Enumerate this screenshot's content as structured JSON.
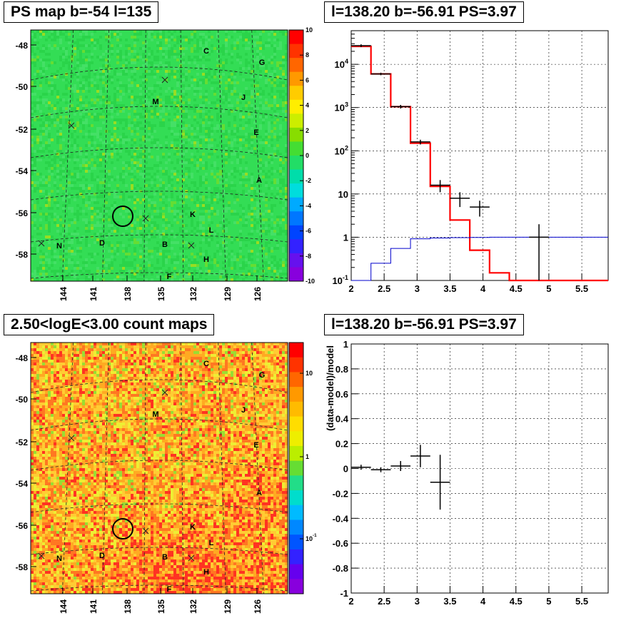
{
  "chart_data": [
    {
      "type": "heatmap",
      "title": "PS map b=-54 l=135",
      "ylabel": "",
      "xlabel": "",
      "y_ticks": [
        "-48",
        "-50",
        "-52",
        "-54",
        "-56",
        "-58"
      ],
      "x_ticks": [
        "144",
        "141",
        "138",
        "135",
        "132",
        "129",
        "126"
      ],
      "colorbar_ticks": [
        "10",
        "8",
        "6",
        "4",
        "2",
        "0",
        "-2",
        "-4",
        "-6",
        "-8",
        "-10"
      ],
      "colorbar_range": [
        -10,
        10
      ],
      "source_labels": [
        "C",
        "G",
        "M",
        "J",
        "E",
        "A",
        "K",
        "L",
        "N",
        "D",
        "B",
        "H",
        "F"
      ],
      "colors": {
        "background": "#33dd55",
        "noise": "#22cc44"
      }
    },
    {
      "type": "line",
      "title": "l=138.20 b=-56.91 PS=3.97",
      "xlabel": "",
      "ylabel": "",
      "log_y": true,
      "xlim": [
        2,
        5.9
      ],
      "ylim": [
        0.1,
        60000
      ],
      "x_ticks": [
        "2",
        "2.5",
        "3",
        "3.5",
        "4",
        "4.5",
        "5",
        "5.5"
      ],
      "y_ticks": [
        "10^{-1}",
        "1",
        "10",
        "10^{2}",
        "10^{3}",
        "10^{4}"
      ],
      "grid": true,
      "series": [
        {
          "color": "#ff0000",
          "bin_edges": [
            2.0,
            2.3,
            2.6,
            2.9,
            3.2,
            3.5,
            3.8,
            4.1,
            4.4,
            5.9
          ],
          "values": [
            26000,
            6000,
            1050,
            150,
            15,
            2.5,
            0.5,
            0.15,
            0.1
          ]
        },
        {
          "color": "#0000cc",
          "bin_edges": [
            2.0,
            2.3,
            2.6,
            2.9,
            3.2,
            3.5,
            3.8,
            4.1,
            4.4,
            5.9
          ],
          "values": [
            0.1,
            0.25,
            0.55,
            0.92,
            0.96,
            0.98,
            0.99,
            1.0,
            1.0
          ]
        },
        {
          "color": "#000000",
          "points": [
            {
              "x": 2.15,
              "y": 27000,
              "xerr": 0.15,
              "ylo": 25000,
              "yhi": 29000
            },
            {
              "x": 2.45,
              "y": 6000,
              "xerr": 0.15,
              "ylo": 5600,
              "yhi": 6400
            },
            {
              "x": 2.75,
              "y": 1050,
              "xerr": 0.15,
              "ylo": 950,
              "yhi": 1150
            },
            {
              "x": 3.05,
              "y": 160,
              "xerr": 0.15,
              "ylo": 140,
              "yhi": 180
            },
            {
              "x": 3.35,
              "y": 16,
              "xerr": 0.15,
              "ylo": 11,
              "yhi": 21
            },
            {
              "x": 3.65,
              "y": 8,
              "xerr": 0.15,
              "ylo": 5,
              "yhi": 11
            },
            {
              "x": 3.95,
              "y": 5,
              "xerr": 0.15,
              "ylo": 3,
              "yhi": 7
            },
            {
              "x": 4.85,
              "y": 1,
              "xerr": 0.15,
              "ylo": 0.1,
              "yhi": 2
            }
          ]
        }
      ]
    },
    {
      "type": "heatmap",
      "title": "2.50<logE<3.00 count maps",
      "ylabel": "",
      "xlabel": "",
      "y_ticks": [
        "-48",
        "-50",
        "-52",
        "-54",
        "-56",
        "-58"
      ],
      "x_ticks": [
        "144",
        "141",
        "138",
        "135",
        "132",
        "129",
        "126"
      ],
      "colorbar_ticks": [
        "10",
        "1",
        "10^{-1}"
      ],
      "source_labels": [
        "C",
        "G",
        "M",
        "J",
        "E",
        "A",
        "K",
        "L",
        "N",
        "D",
        "B",
        "H",
        "F"
      ],
      "colors": {
        "background": "#ffaa22",
        "noise": "#eedd22"
      }
    },
    {
      "type": "scatter",
      "title": "l=138.20 b=-56.91 PS=3.97",
      "xlabel": "",
      "ylabel": "(data-model)/model",
      "xlim": [
        2,
        5.9
      ],
      "ylim": [
        -1,
        1
      ],
      "x_ticks": [
        "2",
        "2.5",
        "3",
        "3.5",
        "4",
        "4.5",
        "5",
        "5.5"
      ],
      "y_ticks": [
        "-1",
        "-0.8",
        "-0.6",
        "-0.4",
        "-0.2",
        "0",
        "0.2",
        "0.4",
        "0.6",
        "0.8",
        "1"
      ],
      "grid": true,
      "points": [
        {
          "x": 2.15,
          "y": 0.01,
          "xerr": 0.15,
          "yerr": 0.02
        },
        {
          "x": 2.45,
          "y": -0.01,
          "xerr": 0.15,
          "yerr": 0.02
        },
        {
          "x": 2.75,
          "y": 0.02,
          "xerr": 0.15,
          "yerr": 0.04
        },
        {
          "x": 3.05,
          "y": 0.1,
          "xerr": 0.15,
          "yerr": 0.09
        },
        {
          "x": 3.35,
          "y": -0.11,
          "xerr": 0.15,
          "yerr": 0.22
        }
      ]
    }
  ]
}
